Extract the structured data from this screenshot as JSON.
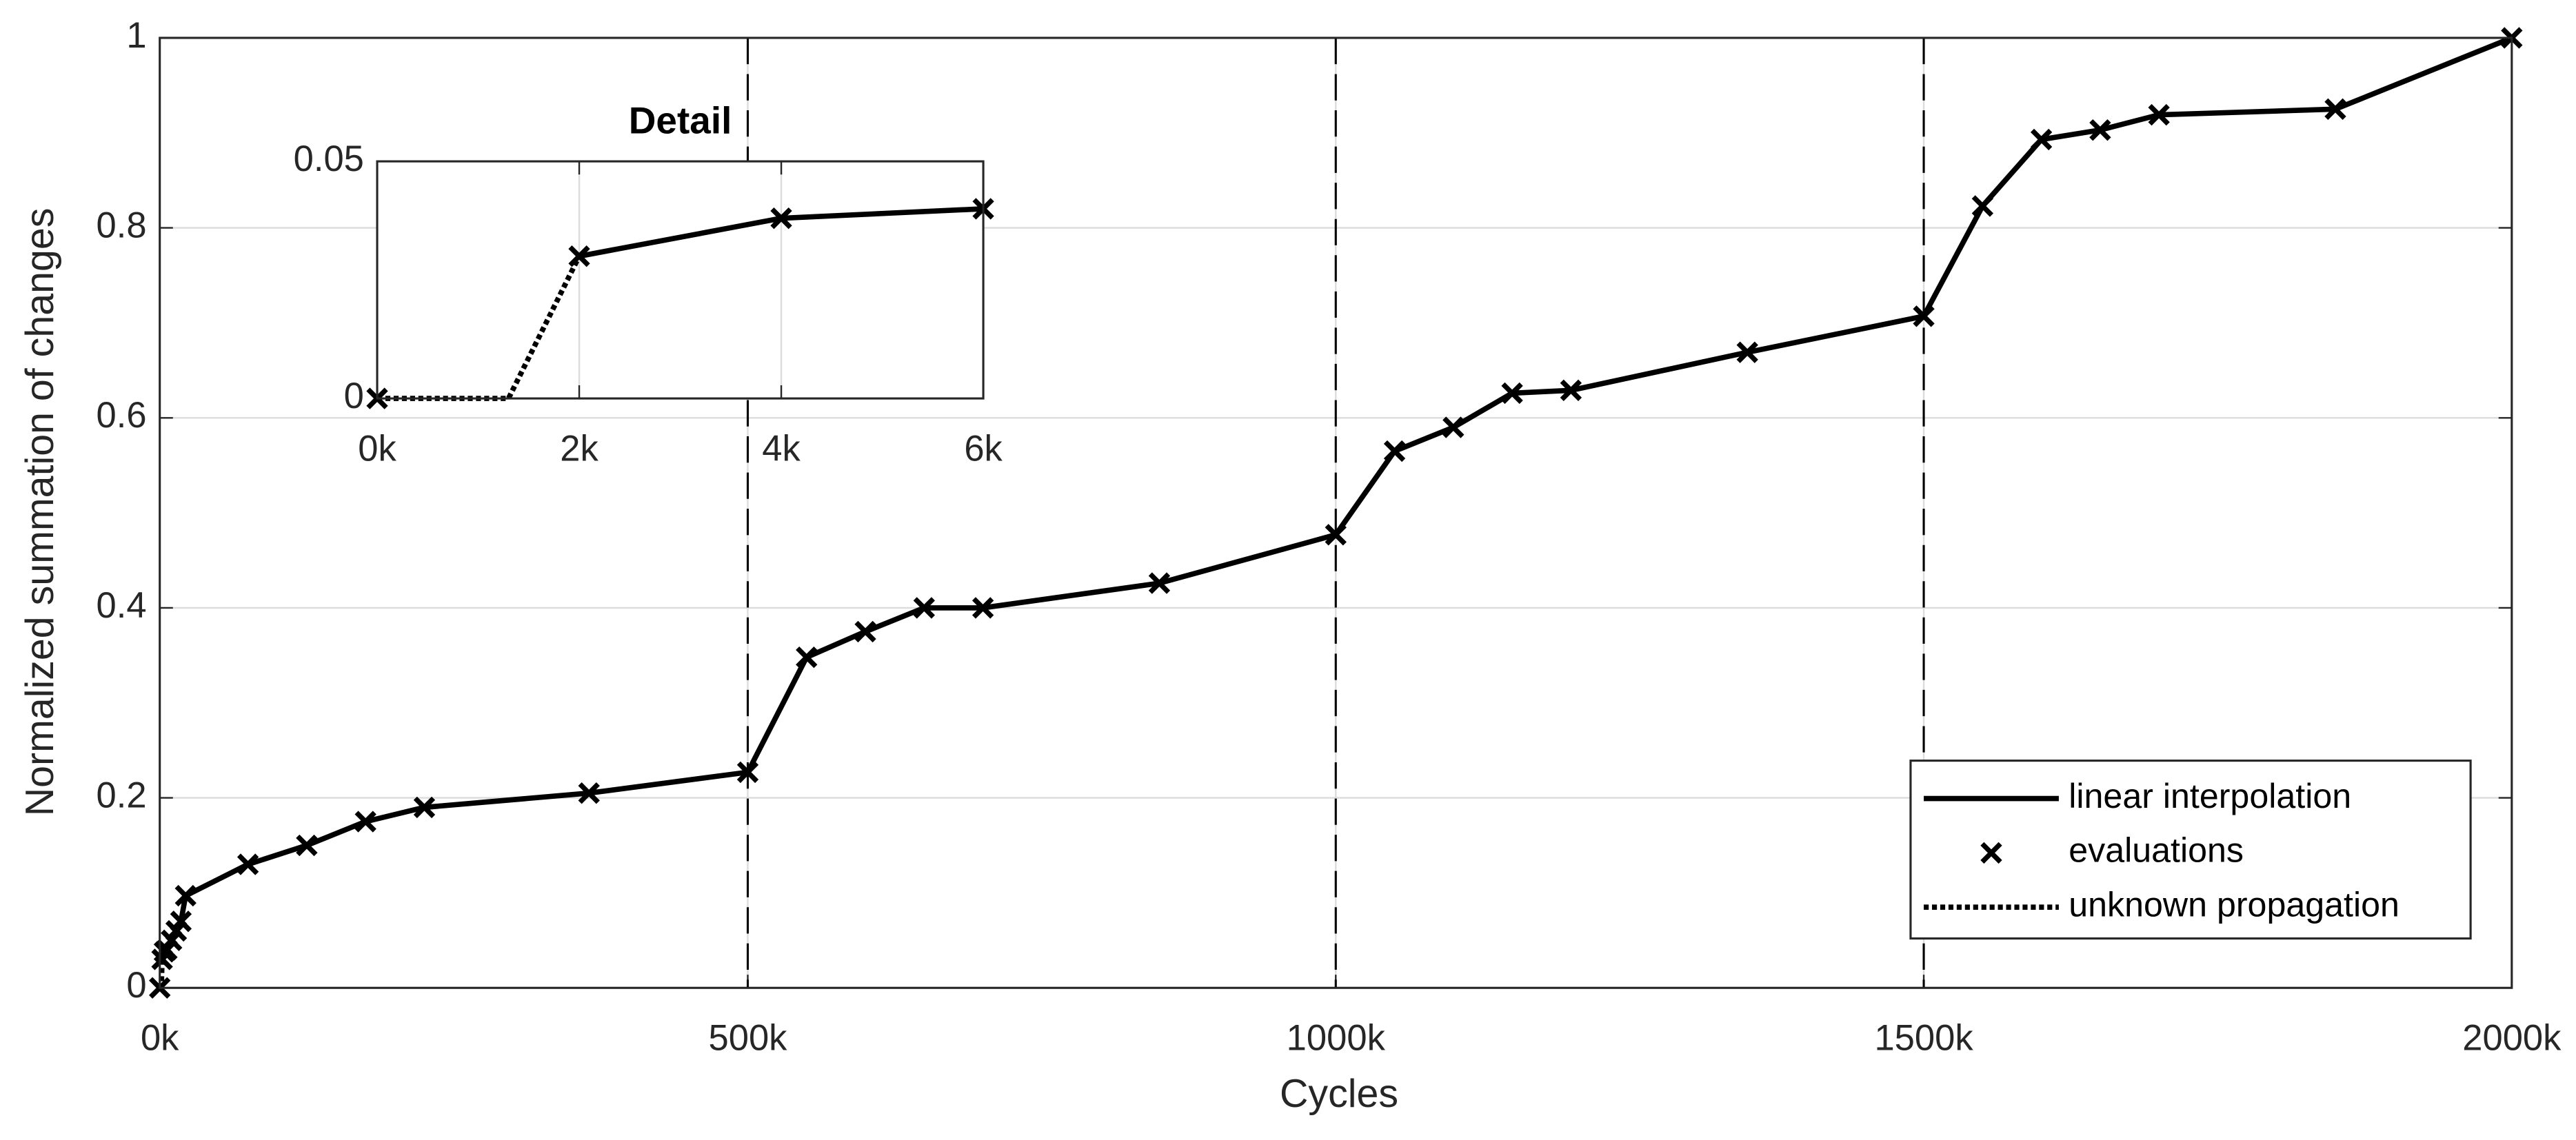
{
  "chart_data": [
    {
      "type": "line",
      "xlabel": "Cycles",
      "ylabel": "Normalized summation of changes",
      "xlim": [
        0,
        2000
      ],
      "ylim": [
        0,
        1
      ],
      "xticks": [
        {
          "value": 0,
          "label": "0k"
        },
        {
          "value": 500,
          "label": "500k"
        },
        {
          "value": 1000,
          "label": "1000k"
        },
        {
          "value": 1500,
          "label": "1500k"
        },
        {
          "value": 2000,
          "label": "2000k"
        }
      ],
      "yticks": [
        0,
        0.2,
        0.4,
        0.6,
        0.8,
        1
      ],
      "grid": true,
      "legend": "lower right",
      "vlines": [
        500,
        1000,
        1500
      ],
      "series": [
        {
          "name": "linear interpolation",
          "style": "solid",
          "color": "#000000",
          "x": [
            2,
            4,
            6,
            10,
            14,
            18,
            22,
            75,
            125,
            175,
            225,
            365,
            500,
            550,
            600,
            650,
            700,
            850,
            1000,
            1050,
            1100,
            1150,
            1200,
            1350,
            1500,
            1550,
            1600,
            1650,
            1700,
            1850,
            2000
          ],
          "values": [
            0.03,
            0.038,
            0.04,
            0.05,
            0.06,
            0.07,
            0.097,
            0.13,
            0.15,
            0.175,
            0.19,
            0.205,
            0.227,
            0.348,
            0.375,
            0.4,
            0.4,
            0.426,
            0.477,
            0.565,
            0.59,
            0.626,
            0.629,
            0.669,
            0.707,
            0.823,
            0.893,
            0.903,
            0.919,
            0.925,
            1
          ]
        },
        {
          "name": "evaluations",
          "style": "marker",
          "color": "#000000",
          "x": [
            0,
            2,
            4,
            6,
            10,
            14,
            18,
            22,
            75,
            125,
            175,
            225,
            365,
            500,
            550,
            600,
            650,
            700,
            850,
            1000,
            1050,
            1100,
            1150,
            1200,
            1350,
            1500,
            1550,
            1600,
            1650,
            1700,
            1850,
            2000
          ],
          "values": [
            0,
            0.03,
            0.038,
            0.04,
            0.05,
            0.06,
            0.07,
            0.097,
            0.13,
            0.15,
            0.175,
            0.19,
            0.205,
            0.227,
            0.348,
            0.375,
            0.4,
            0.4,
            0.426,
            0.477,
            0.565,
            0.59,
            0.626,
            0.629,
            0.669,
            0.707,
            0.823,
            0.893,
            0.903,
            0.919,
            0.925,
            1
          ]
        },
        {
          "name": "unknown propagation",
          "style": "dotted",
          "color": "#000000",
          "x": [
            0,
            1.3,
            2
          ],
          "values": [
            0,
            0,
            0.03
          ]
        }
      ]
    },
    {
      "type": "line",
      "title": "Detail",
      "xlim": [
        0,
        6
      ],
      "ylim": [
        0,
        0.05
      ],
      "xticks": [
        {
          "value": 0,
          "label": "0k"
        },
        {
          "value": 2,
          "label": "2k"
        },
        {
          "value": 4,
          "label": "4k"
        },
        {
          "value": 6,
          "label": "6k"
        }
      ],
      "yticks": [
        0,
        0.05
      ],
      "grid": true,
      "series": [
        {
          "style": "solid",
          "color": "#000000",
          "x": [
            2,
            4,
            6
          ],
          "values": [
            0.03,
            0.038,
            0.04
          ]
        },
        {
          "style": "marker",
          "color": "#000000",
          "x": [
            0,
            2,
            4,
            6
          ],
          "values": [
            0,
            0.03,
            0.038,
            0.04
          ]
        },
        {
          "style": "dotted",
          "color": "#000000",
          "x": [
            0,
            1.3,
            2
          ],
          "values": [
            0,
            0,
            0.03
          ]
        }
      ]
    }
  ]
}
